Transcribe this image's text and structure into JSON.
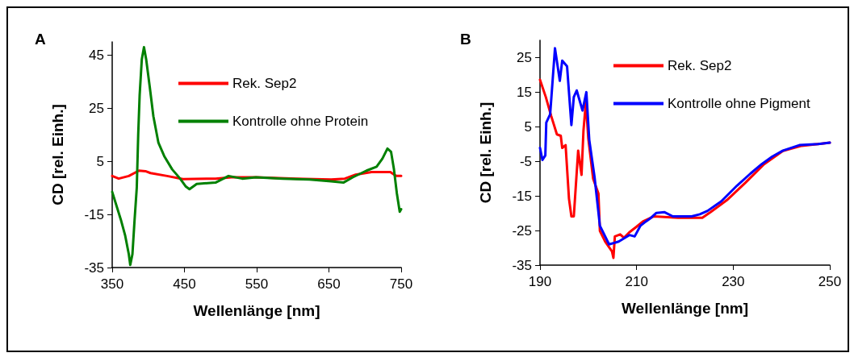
{
  "chart_data": [
    {
      "type": "line",
      "title": "A",
      "xlabel": "Wellenlänge [nm]",
      "ylabel": "CD [rel. Einh.]",
      "xlim": [
        350,
        750
      ],
      "xticks": [
        350,
        450,
        550,
        650,
        750
      ],
      "ylim": [
        -35,
        50
      ],
      "yticks": [
        -35,
        -15,
        5,
        25,
        45
      ],
      "grid": false,
      "legend": "top right",
      "marker": "none",
      "line_style": "solid",
      "series": [
        {
          "name": "Rek. Sep2",
          "color": "#ff0000",
          "x": [
            350,
            359,
            373,
            387,
            396,
            403,
            426,
            448,
            493,
            515,
            549,
            605,
            653,
            672,
            687,
            709,
            735,
            743,
            750
          ],
          "values": [
            -0.5,
            -1.5,
            -0.5,
            1.5,
            1.3,
            0.6,
            -0.5,
            -1.7,
            -1.5,
            -1,
            -1,
            -1.5,
            -1.8,
            -1.5,
            0,
            1,
            1,
            -0.5,
            -0.5
          ]
        },
        {
          "name": "Kontrolle ohne Protein",
          "color": "#008000",
          "x": [
            350,
            362,
            368,
            373,
            375,
            378,
            381,
            384,
            386,
            388,
            391,
            394,
            397,
            402,
            407,
            414,
            422,
            433,
            444,
            452,
            457,
            467,
            493,
            511,
            530,
            549,
            586,
            623,
            653,
            670,
            683,
            702,
            716,
            724,
            731,
            736,
            740,
            744,
            748,
            750
          ],
          "values": [
            -6.5,
            -17,
            -23,
            -30,
            -34,
            -30,
            -17,
            -5,
            15,
            30,
            43.5,
            48,
            43.5,
            33,
            22,
            12,
            7,
            2,
            -1.5,
            -4.5,
            -5.5,
            -3.5,
            -3,
            -0.5,
            -1.5,
            -1,
            -1.5,
            -1.8,
            -2.5,
            -3,
            -1,
            1.5,
            3,
            6,
            9.8,
            8.6,
            2,
            -7,
            -14,
            -13
          ]
        }
      ]
    },
    {
      "type": "line",
      "title": "B",
      "xlabel": "Wellenlänge [nm]",
      "ylabel": "CD [rel. Einh.]",
      "xlim": [
        190,
        250
      ],
      "xticks": [
        190,
        210,
        230,
        250
      ],
      "ylim": [
        -35,
        30
      ],
      "yticks": [
        -35,
        -25,
        -15,
        -5,
        5,
        15,
        25
      ],
      "grid": false,
      "legend": "top right",
      "marker": "none",
      "line_style": "solid",
      "series": [
        {
          "name": "Rek. Sep2",
          "color": "#ff0000",
          "x": [
            190,
            191.2,
            192.3,
            193.5,
            194.3,
            194.6,
            195.3,
            196,
            196.5,
            197,
            197.9,
            198.6,
            199,
            199.5,
            200,
            201,
            202.1,
            202.4,
            203.5,
            204.9,
            205.2,
            205.5,
            206.6,
            207.4,
            208.5,
            209.9,
            211.3,
            213.6,
            218.6,
            223.6,
            225.3,
            228.7,
            232.5,
            236.4,
            240.3,
            244.2,
            250
          ],
          "values": [
            18.6,
            13.6,
            8.2,
            2.8,
            2.4,
            -1.1,
            -0.3,
            -15.8,
            -20.9,
            -20.9,
            -1.9,
            -8.9,
            3.9,
            12.1,
            1.6,
            -10,
            -14.3,
            -25.1,
            -28.2,
            -31,
            -32.9,
            -26.7,
            -26.1,
            -27.1,
            -25.5,
            -24,
            -22.4,
            -20.9,
            -21.3,
            -21.3,
            -19.7,
            -16.2,
            -11.2,
            -5.8,
            -2,
            -0.5,
            0.4
          ]
        },
        {
          "name": "Kontrolle ohne Pigment",
          "color": "#0000ff",
          "x": [
            190,
            190.5,
            191.1,
            191.3,
            192.1,
            193.1,
            194.1,
            194.6,
            195.6,
            196.5,
            197,
            197.6,
            198.8,
            199.6,
            200.2,
            201.3,
            202.4,
            204.3,
            206.3,
            208.5,
            209.6,
            210.8,
            211.9,
            213,
            214.1,
            215.8,
            217.5,
            221.4,
            223.1,
            224.7,
            227.5,
            230.8,
            233.6,
            235.9,
            238.1,
            240.3,
            243.7,
            247.6,
            250
          ],
          "values": [
            -1.1,
            -4.6,
            -3.3,
            6.2,
            8.6,
            27.7,
            18.3,
            24.1,
            22.5,
            5.5,
            13.6,
            15.5,
            9.7,
            15,
            1.2,
            -9.6,
            -23.6,
            -29,
            -28.2,
            -26.3,
            -26.7,
            -23.6,
            -22.4,
            -21.3,
            -19.9,
            -19.7,
            -20.9,
            -20.9,
            -20.3,
            -19.3,
            -16.6,
            -12,
            -8.5,
            -5.8,
            -3.6,
            -1.9,
            -0.3,
            0,
            0.4
          ]
        }
      ]
    }
  ]
}
